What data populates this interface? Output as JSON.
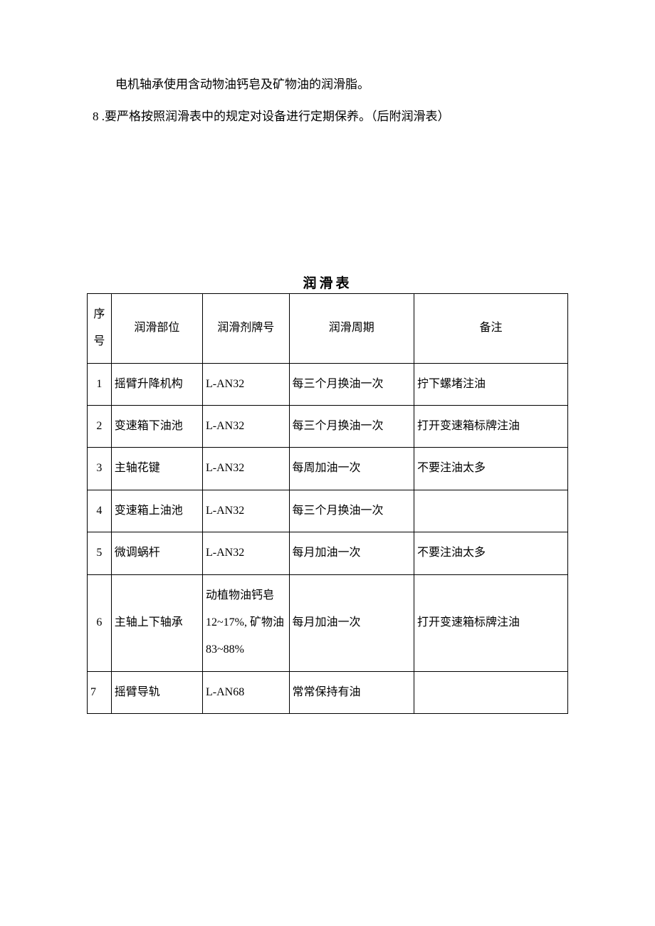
{
  "paragraphs": {
    "p1": "电机轴承使用含动物油钙皂及矿物油的润滑脂。",
    "p2_num": "8",
    "p2_text": " .要严格按照润滑表中的规定对设备进行定期保养。（后附润滑表）"
  },
  "table": {
    "title": "润滑表",
    "headers": {
      "seq": "序号",
      "part": "润滑部位",
      "brand": "润滑剂牌号",
      "period": "润滑周期",
      "remark": "备注"
    },
    "rows": [
      {
        "seq": "1",
        "part": "摇臂升降机构",
        "brand": "L-AN32",
        "period": "每三个月换油一次",
        "remark": "拧下螺堵注油"
      },
      {
        "seq": "2",
        "part": "变速箱下油池",
        "brand": "L-AN32",
        "period": "每三个月换油一次",
        "remark": "打开变速箱标牌注油"
      },
      {
        "seq": "3",
        "part": "主轴花键",
        "brand": "L-AN32",
        "period": "每周加油一次",
        "remark": "不要注油太多"
      },
      {
        "seq": "4",
        "part": "变速箱上油池",
        "brand": "L-AN32",
        "period": "每三个月换油一次",
        "remark": ""
      },
      {
        "seq": "5",
        "part": "微调蜗杆",
        "brand": "L-AN32",
        "period": "每月加油一次",
        "remark": "不要注油太多"
      },
      {
        "seq": "6",
        "part": "主轴上下轴承",
        "brand": "动植物油钙皂 12~17%, 矿物油 83~88%",
        "period": "每月加油一次",
        "remark": "打开变速箱标牌注油"
      },
      {
        "seq": "7",
        "part": "摇臂导轨",
        "brand": "L-AN68",
        "period": "常常保持有油",
        "remark": ""
      }
    ]
  },
  "styles": {
    "font_color": "#000000",
    "background_color": "#ffffff",
    "border_color": "#000000",
    "body_fontsize": 17,
    "table_fontsize": 16,
    "title_fontsize": 19
  }
}
